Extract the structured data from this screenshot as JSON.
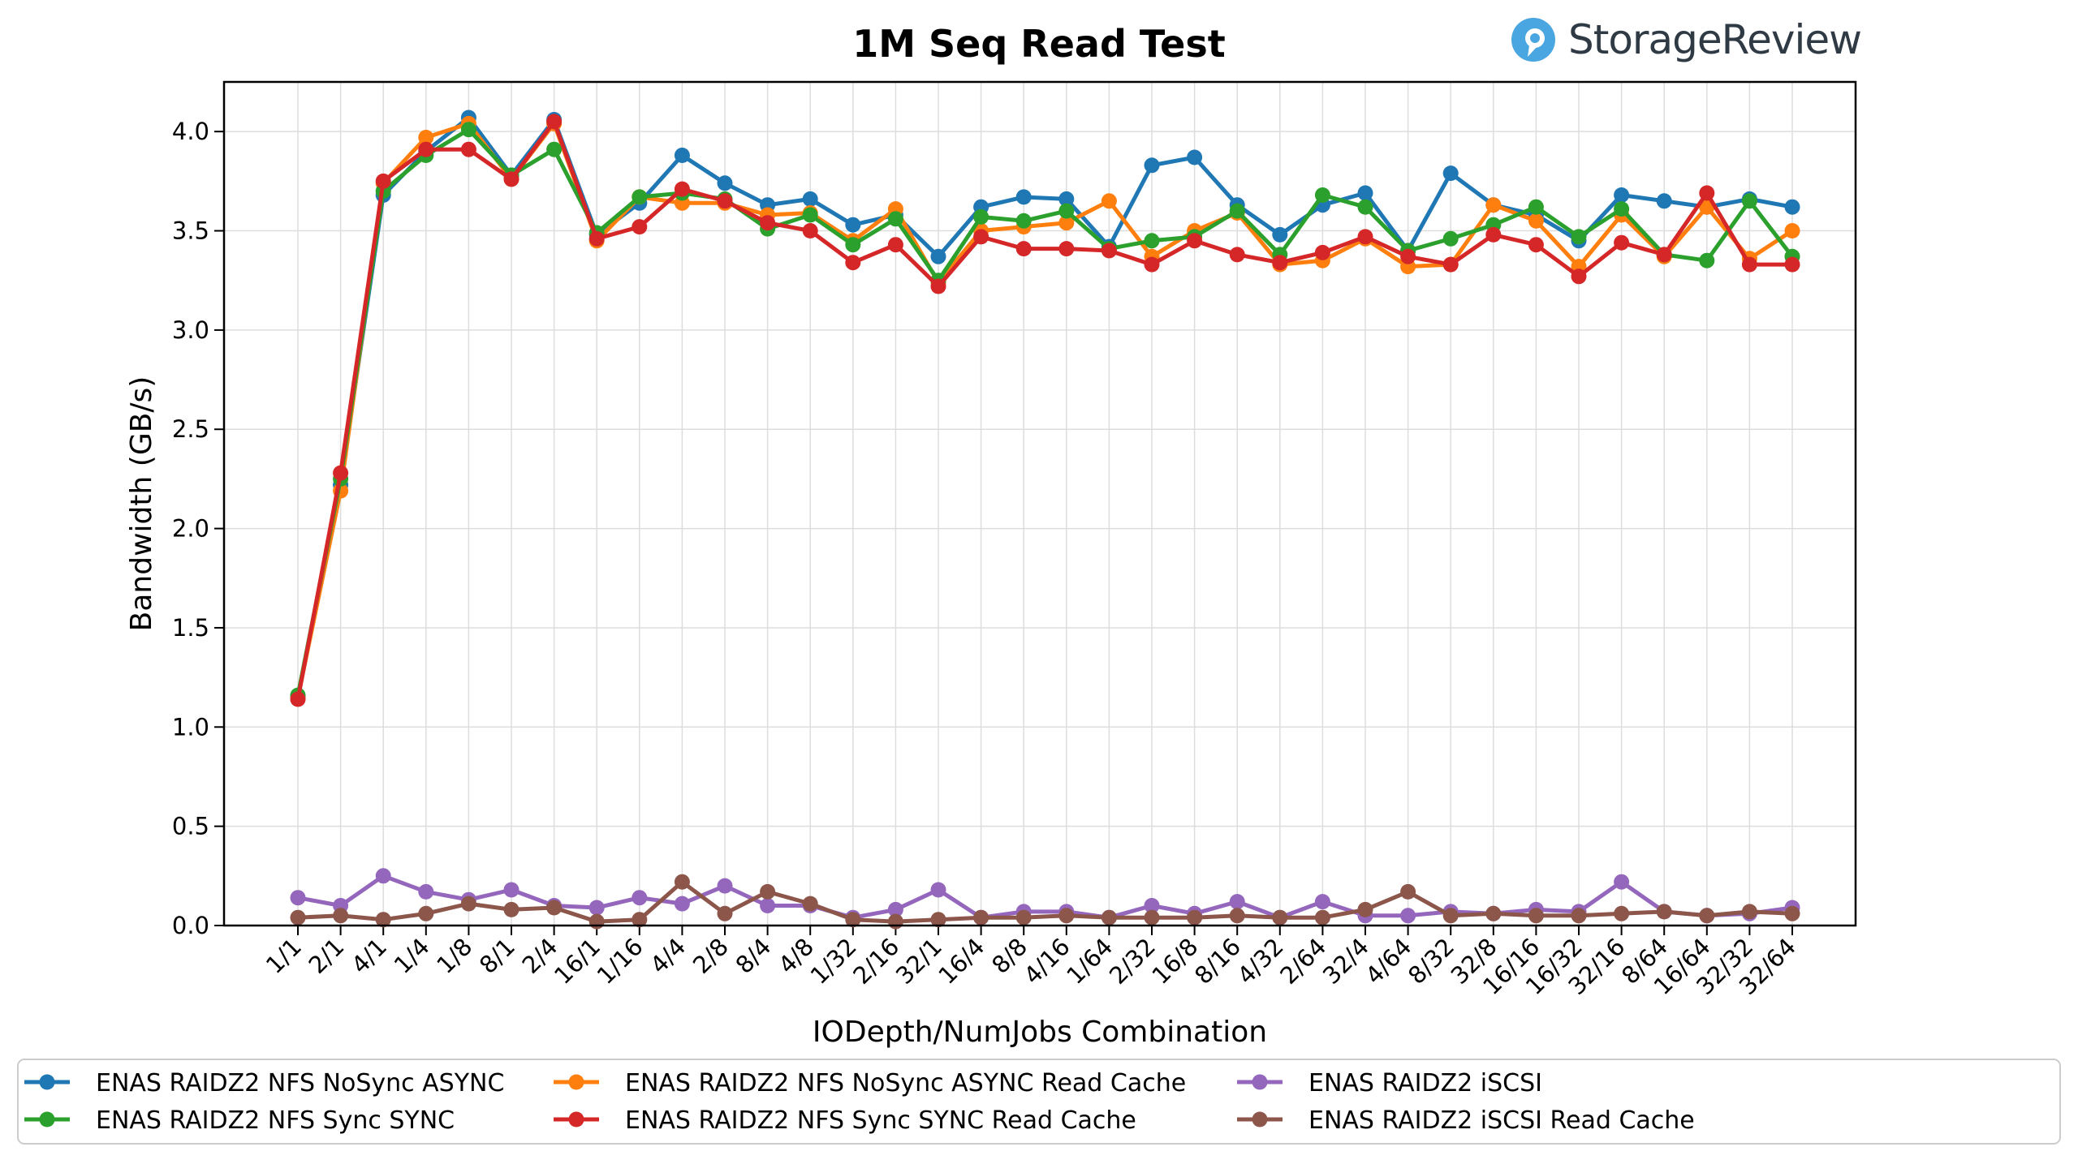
{
  "brand": {
    "name": "StorageReview",
    "accent": "#4aa6e0"
  },
  "chart_data": {
    "type": "line",
    "title": "1M Seq Read Test",
    "xlabel": "IODepth/NumJobs Combination",
    "ylabel": "Bandwidth (GB/s)",
    "ylim": [
      0,
      4.25
    ],
    "yticks": [
      "0.0",
      "0.5",
      "1.0",
      "1.5",
      "2.0",
      "2.5",
      "3.0",
      "3.5",
      "4.0"
    ],
    "grid": true,
    "legend_placement": "bottom",
    "categories": [
      "1/1",
      "2/1",
      "4/1",
      "1/4",
      "1/8",
      "8/1",
      "2/4",
      "16/1",
      "1/16",
      "4/4",
      "2/8",
      "8/4",
      "4/8",
      "1/32",
      "2/16",
      "32/1",
      "16/4",
      "8/8",
      "4/16",
      "1/64",
      "2/32",
      "16/8",
      "8/16",
      "4/32",
      "2/64",
      "32/4",
      "4/64",
      "8/32",
      "32/8",
      "16/16",
      "16/32",
      "32/16",
      "8/64",
      "16/64",
      "32/32",
      "32/64"
    ],
    "series": [
      {
        "name": "ENAS RAIDZ2 NFS NoSync ASYNC",
        "color": "#1f77b4",
        "values": [
          1.15,
          2.22,
          3.68,
          3.9,
          4.07,
          3.78,
          4.06,
          3.48,
          3.64,
          3.88,
          3.74,
          3.63,
          3.66,
          3.53,
          3.58,
          3.37,
          3.62,
          3.67,
          3.66,
          3.42,
          3.83,
          3.87,
          3.63,
          3.48,
          3.63,
          3.69,
          3.4,
          3.79,
          3.63,
          3.58,
          3.45,
          3.68,
          3.65,
          3.62,
          3.66,
          3.62
        ]
      },
      {
        "name": "ENAS RAIDZ2 NFS NoSync ASYNC Read Cache",
        "color": "#ff7f0e",
        "values": [
          1.15,
          2.19,
          3.74,
          3.97,
          4.04,
          3.76,
          4.04,
          3.45,
          3.67,
          3.64,
          3.64,
          3.58,
          3.59,
          3.45,
          3.61,
          3.24,
          3.5,
          3.52,
          3.54,
          3.65,
          3.37,
          3.5,
          3.59,
          3.33,
          3.35,
          3.46,
          3.32,
          3.33,
          3.63,
          3.55,
          3.32,
          3.58,
          3.37,
          3.62,
          3.36,
          3.5
        ]
      },
      {
        "name": "ENAS RAIDZ2 NFS Sync SYNC",
        "color": "#2ca02c",
        "values": [
          1.16,
          2.25,
          3.7,
          3.88,
          4.01,
          3.78,
          3.91,
          3.49,
          3.67,
          3.69,
          3.66,
          3.51,
          3.58,
          3.43,
          3.56,
          3.25,
          3.57,
          3.55,
          3.6,
          3.41,
          3.45,
          3.47,
          3.6,
          3.38,
          3.68,
          3.62,
          3.4,
          3.46,
          3.53,
          3.62,
          3.47,
          3.61,
          3.38,
          3.35,
          3.65,
          3.37
        ]
      },
      {
        "name": "ENAS RAIDZ2 NFS Sync SYNC Read Cache",
        "color": "#d62728",
        "values": [
          1.14,
          2.28,
          3.75,
          3.91,
          3.91,
          3.76,
          4.05,
          3.46,
          3.52,
          3.71,
          3.65,
          3.54,
          3.5,
          3.34,
          3.43,
          3.22,
          3.47,
          3.41,
          3.41,
          3.4,
          3.33,
          3.45,
          3.38,
          3.34,
          3.39,
          3.47,
          3.37,
          3.33,
          3.48,
          3.43,
          3.27,
          3.44,
          3.38,
          3.69,
          3.33,
          3.33
        ]
      },
      {
        "name": "ENAS RAIDZ2 iSCSI",
        "color": "#9467bd",
        "values": [
          0.14,
          0.1,
          0.25,
          0.17,
          0.13,
          0.18,
          0.1,
          0.09,
          0.14,
          0.11,
          0.2,
          0.1,
          0.1,
          0.04,
          0.08,
          0.18,
          0.04,
          0.07,
          0.07,
          0.04,
          0.1,
          0.06,
          0.12,
          0.04,
          0.12,
          0.05,
          0.05,
          0.07,
          0.06,
          0.08,
          0.07,
          0.22,
          0.07,
          0.05,
          0.06,
          0.09
        ]
      },
      {
        "name": "ENAS RAIDZ2 iSCSI Read Cache",
        "color": "#8c564b",
        "values": [
          0.04,
          0.05,
          0.03,
          0.06,
          0.11,
          0.08,
          0.09,
          0.02,
          0.03,
          0.22,
          0.06,
          0.17,
          0.11,
          0.03,
          0.02,
          0.03,
          0.04,
          0.04,
          0.05,
          0.04,
          0.04,
          0.04,
          0.05,
          0.04,
          0.04,
          0.08,
          0.17,
          0.05,
          0.06,
          0.05,
          0.05,
          0.06,
          0.07,
          0.05,
          0.07,
          0.06
        ]
      }
    ]
  }
}
